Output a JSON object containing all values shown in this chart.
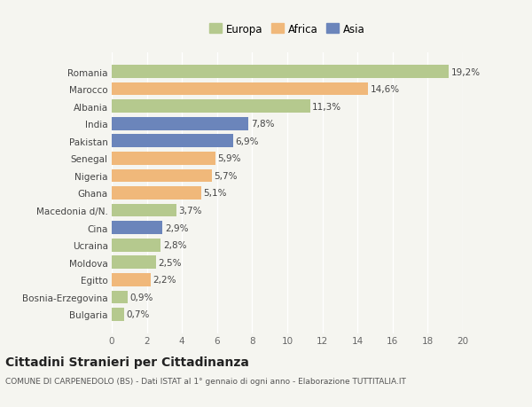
{
  "countries": [
    "Bulgaria",
    "Bosnia-Erzegovina",
    "Egitto",
    "Moldova",
    "Ucraina",
    "Cina",
    "Macedonia d/N.",
    "Ghana",
    "Nigeria",
    "Senegal",
    "Pakistan",
    "India",
    "Albania",
    "Marocco",
    "Romania"
  ],
  "values": [
    0.7,
    0.9,
    2.2,
    2.5,
    2.8,
    2.9,
    3.7,
    5.1,
    5.7,
    5.9,
    6.9,
    7.8,
    11.3,
    14.6,
    19.2
  ],
  "labels": [
    "0,7%",
    "0,9%",
    "2,2%",
    "2,5%",
    "2,8%",
    "2,9%",
    "3,7%",
    "5,1%",
    "5,7%",
    "5,9%",
    "6,9%",
    "7,8%",
    "11,3%",
    "14,6%",
    "19,2%"
  ],
  "continents": [
    "Europa",
    "Europa",
    "Africa",
    "Europa",
    "Europa",
    "Asia",
    "Europa",
    "Africa",
    "Africa",
    "Africa",
    "Asia",
    "Asia",
    "Europa",
    "Africa",
    "Europa"
  ],
  "colors": {
    "Europa": "#b5c98e",
    "Africa": "#f0b87a",
    "Asia": "#6b85bb"
  },
  "xlim": [
    0,
    20
  ],
  "xticks": [
    0,
    2,
    4,
    6,
    8,
    10,
    12,
    14,
    16,
    18,
    20
  ],
  "title": "Cittadini Stranieri per Cittadinanza",
  "subtitle": "COMUNE DI CARPENEDOLO (BS) - Dati ISTAT al 1° gennaio di ogni anno - Elaborazione TUTTITALIA.IT",
  "background_color": "#f5f5f0",
  "grid_color": "#ffffff",
  "bar_height": 0.75,
  "label_fontsize": 7.5,
  "ytick_fontsize": 7.5,
  "xtick_fontsize": 7.5,
  "title_fontsize": 10,
  "subtitle_fontsize": 6.5
}
